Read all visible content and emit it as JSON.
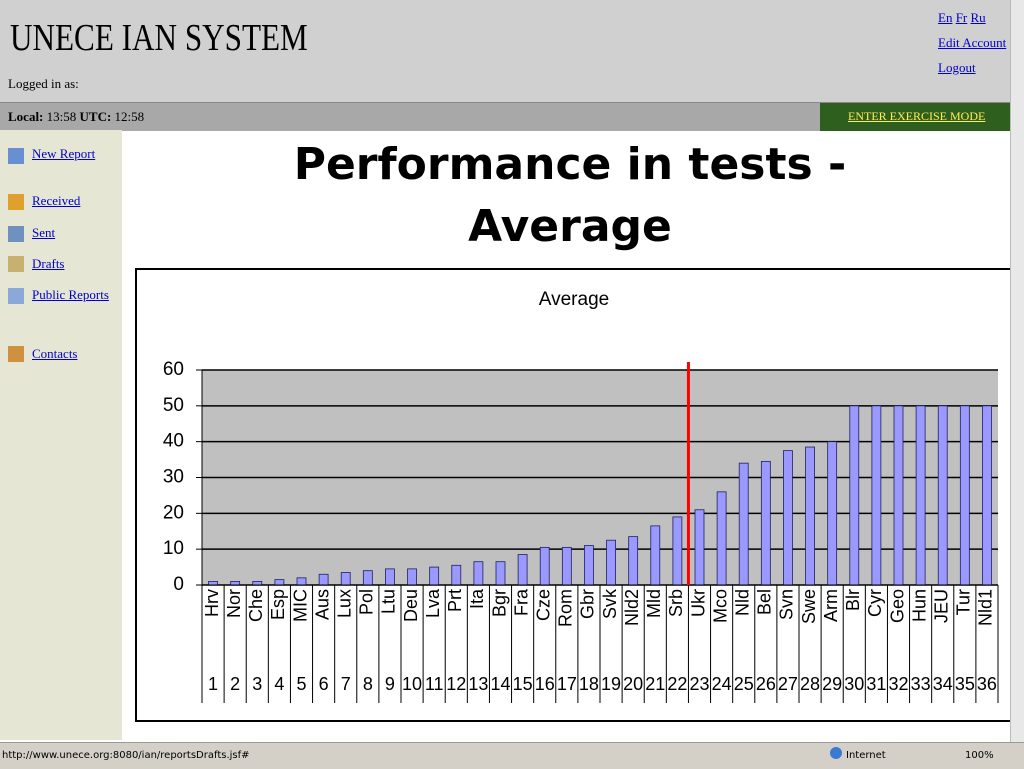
{
  "header": {
    "title": "UNECE IAN SYSTEM",
    "logged_in": "Logged in as:",
    "languages": [
      "En",
      "Fr",
      "Ru"
    ],
    "edit_account": "Edit Account",
    "logout": "Logout"
  },
  "timebar": {
    "local_label": "Local:",
    "local_time": "13:58",
    "utc_label": "UTC:",
    "utc_time": "12:58",
    "exercise_button": "ENTER EXERCISE MODE"
  },
  "sidebar": {
    "items": [
      "New Report",
      "Received",
      "Sent",
      "Drafts",
      "Public Reports",
      "Contacts"
    ]
  },
  "slide_title": "Performance in tests - Average",
  "chart_data": {
    "type": "bar",
    "title": "Average",
    "categories": [
      "Hrv",
      "Nor",
      "Che",
      "Esp",
      "MIC",
      "Aus",
      "Lux",
      "Pol",
      "Ltu",
      "Deu",
      "Lva",
      "Prt",
      "Ita",
      "Bgr",
      "Fra",
      "Cze",
      "Rom",
      "Gbr",
      "Svk",
      "Nld2",
      "Mld",
      "Srb",
      "Ukr",
      "Mco",
      "Nld",
      "Bel",
      "Svn",
      "Swe",
      "Arm",
      "Blr",
      "Cyr",
      "Geo",
      "Hun",
      "JEU",
      "Tur",
      "Nld1"
    ],
    "category_index": [
      "1",
      "2",
      "3",
      "4",
      "5",
      "6",
      "7",
      "8",
      "9",
      "10",
      "11",
      "12",
      "13",
      "14",
      "15",
      "16",
      "17",
      "18",
      "19",
      "20",
      "21",
      "22",
      "23",
      "24",
      "25",
      "26",
      "27",
      "28",
      "29",
      "30",
      "31",
      "32",
      "33",
      "34",
      "35",
      "36"
    ],
    "values": [
      1,
      1,
      1,
      1.5,
      2,
      3,
      3.5,
      4,
      4.5,
      4.5,
      5,
      5.5,
      6.5,
      6.5,
      8.5,
      10.5,
      10.5,
      11,
      12.5,
      13.5,
      16.5,
      19,
      21,
      26,
      34,
      34.5,
      37.5,
      38.5,
      40,
      50,
      50,
      50,
      50,
      50,
      50,
      50
    ],
    "color": "#9999ff",
    "ylim": [
      0,
      60
    ],
    "yticks": [
      0,
      10,
      20,
      30,
      40,
      50,
      60
    ],
    "grid": true
  },
  "status_bar": {
    "url": "http://www.unece.org:8080/ian/reportsDrafts.jsf#",
    "zone": "Internet",
    "zoom": "100%"
  }
}
